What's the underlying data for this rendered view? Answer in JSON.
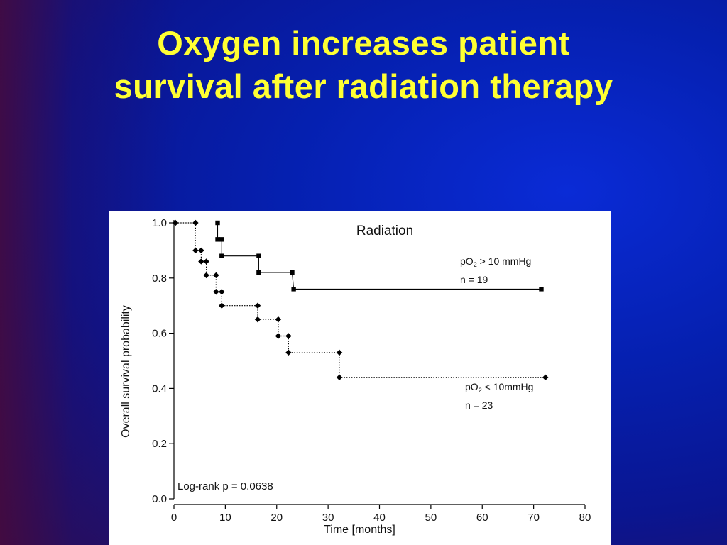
{
  "slide": {
    "title_line1": "Oxygen increases patient",
    "title_line2": "survival after radiation therapy"
  },
  "colors": {
    "title": "#ffff33",
    "background": "#0a2bd6",
    "series_line": "#000000"
  },
  "chart_data": {
    "type": "line",
    "title": "Radiation",
    "xlabel": "Time [months]",
    "ylabel": "Overall survival probability",
    "xlim": [
      0,
      80
    ],
    "ylim": [
      0.0,
      1.0
    ],
    "xticks": [
      0,
      10,
      20,
      30,
      40,
      50,
      60,
      70,
      80
    ],
    "yticks": [
      "0.0",
      "0.2",
      "0.4",
      "0.6",
      "0.8",
      "1.0"
    ],
    "annotation": "Log-rank p = 0.0638",
    "step": true,
    "series": [
      {
        "label_line1_prefix": "pO",
        "label_sub": "2",
        "label_line1_suffix": " > 10 mmHg",
        "label_line2": "n = 19",
        "marker": "square",
        "line_style": "solid",
        "x": [
          8.5,
          8.5,
          9.3,
          9.3,
          16.5,
          16.5,
          23,
          23.3,
          71.5
        ],
        "y": [
          1.0,
          0.94,
          0.94,
          0.88,
          0.88,
          0.82,
          0.82,
          0.76,
          0.76
        ]
      },
      {
        "label_line1_prefix": "pO",
        "label_sub": "2",
        "label_line1_suffix": " < 10mmHg",
        "label_line2": "n = 23",
        "marker": "diamond",
        "line_style": "dotted",
        "x": [
          0.3,
          4.2,
          4.2,
          5.3,
          5.3,
          6.3,
          6.3,
          8.2,
          8.2,
          9.3,
          9.3,
          16.3,
          16.3,
          20.3,
          20.3,
          22.3,
          22.3,
          32.2,
          32.2,
          72.3
        ],
        "y": [
          1.0,
          1.0,
          0.9,
          0.9,
          0.86,
          0.86,
          0.81,
          0.81,
          0.75,
          0.75,
          0.7,
          0.7,
          0.65,
          0.65,
          0.59,
          0.59,
          0.53,
          0.53,
          0.44,
          0.44
        ]
      }
    ]
  }
}
